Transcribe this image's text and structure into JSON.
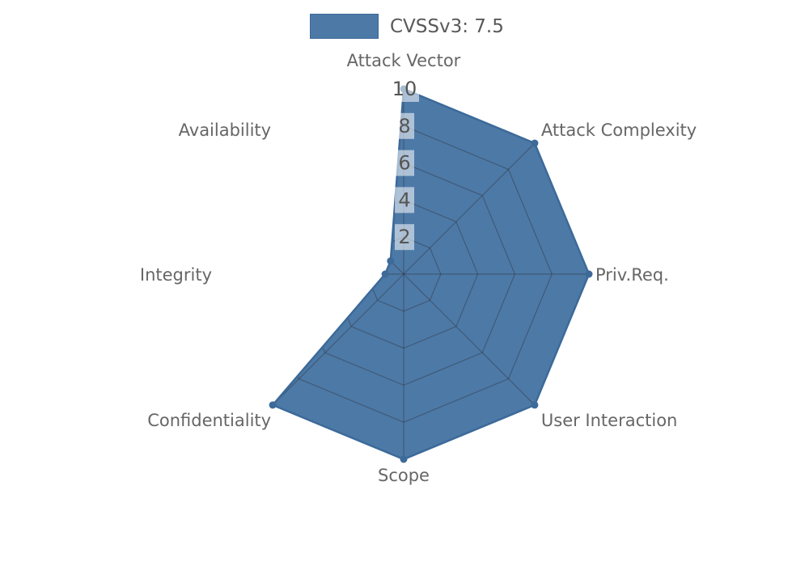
{
  "chart_data": {
    "type": "radar",
    "title": "",
    "legend_label": "CVSSv3: 7.5",
    "categories": [
      "Attack Vector",
      "Attack Complexity",
      "Priv.Req.",
      "User Interaction",
      "Scope",
      "Confidentiality",
      "Integrity",
      "Availability"
    ],
    "series": [
      {
        "name": "CVSSv3: 7.5",
        "values": [
          10,
          10,
          10,
          10,
          10,
          10,
          1,
          1
        ]
      }
    ],
    "radial_ticks": [
      2,
      4,
      6,
      8,
      10
    ],
    "rlim": [
      0,
      10
    ],
    "grid": "polygonal-rings-and-spokes-visible-only-over-fill",
    "legend_position": "top-center",
    "colors": {
      "fill": "#4d79a7",
      "edge": "#3c6a99",
      "grid_line": "rgba(45,45,45,0.40)",
      "tick_text": "#555555",
      "tick_box_bg": "rgba(255,255,255,0.55)",
      "axis_label_text": "#666666",
      "legend_text": "#595959",
      "background": "#ffffff"
    }
  }
}
